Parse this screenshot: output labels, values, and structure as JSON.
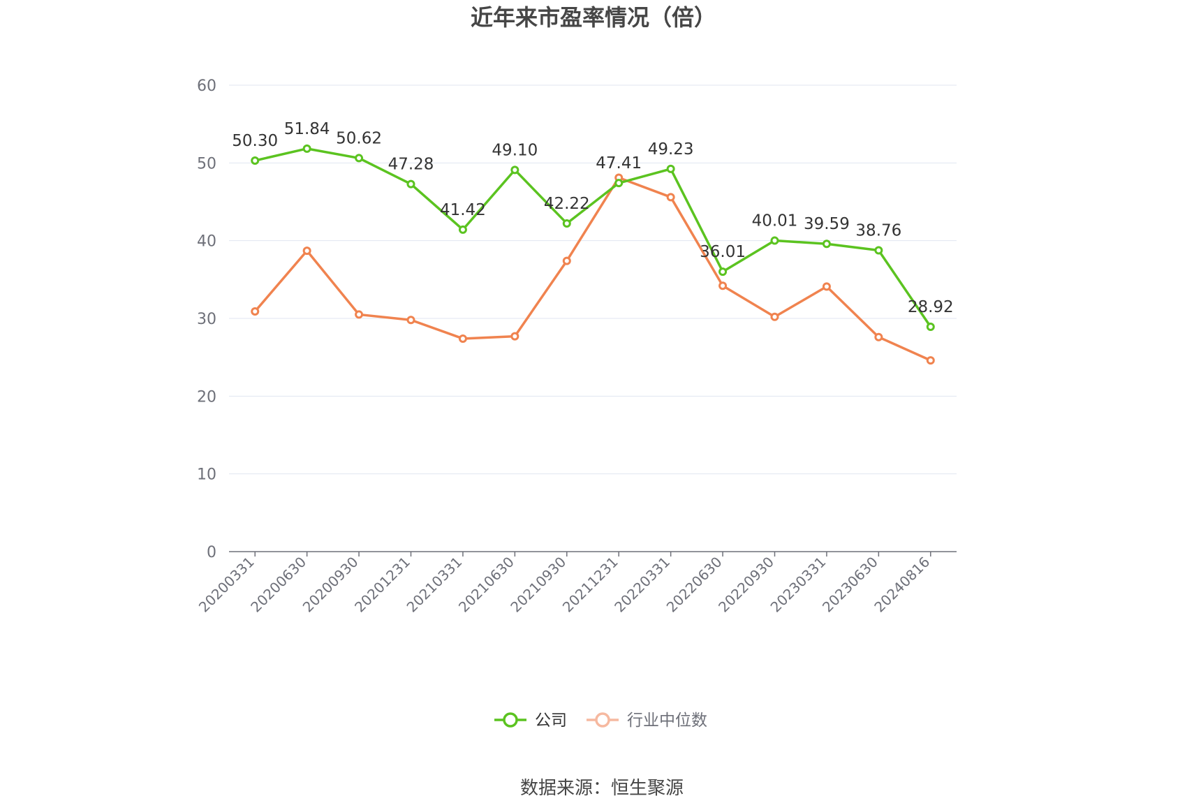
{
  "title": "近年来市盈率情况（倍）",
  "source": "数据来源：恒生聚源",
  "colors": {
    "company": "#5bc320",
    "industry": "#f0834f",
    "industry_legend": "#f6b9a0",
    "grid": "#e0e6f1",
    "axis": "#6e7079"
  },
  "chart_data": {
    "type": "line",
    "categories": [
      "20200331",
      "20200630",
      "20200930",
      "20201231",
      "20210331",
      "20210630",
      "20210930",
      "20211231",
      "20220331",
      "20220630",
      "20220930",
      "20230331",
      "20230630",
      "20240816"
    ],
    "ylim": [
      0,
      60
    ],
    "yticks": [
      0,
      10,
      20,
      30,
      40,
      50,
      60
    ],
    "grid": true,
    "legend_position": "bottom-center",
    "series": [
      {
        "name": "公司",
        "values": [
          50.3,
          51.84,
          50.62,
          47.28,
          41.42,
          49.1,
          42.22,
          47.41,
          49.23,
          36.01,
          40.01,
          39.59,
          38.76,
          28.92
        ],
        "labels": [
          "50.30",
          "51.84",
          "50.62",
          "47.28",
          "41.42",
          "49.10",
          "42.22",
          "47.41",
          "49.23",
          "36.01",
          "40.01",
          "39.59",
          "38.76",
          "28.92"
        ]
      },
      {
        "name": "行业中位数",
        "values": [
          30.9,
          38.7,
          30.5,
          29.8,
          27.4,
          27.7,
          37.4,
          48.1,
          45.6,
          34.2,
          30.2,
          34.1,
          27.6,
          24.6
        ]
      }
    ]
  }
}
